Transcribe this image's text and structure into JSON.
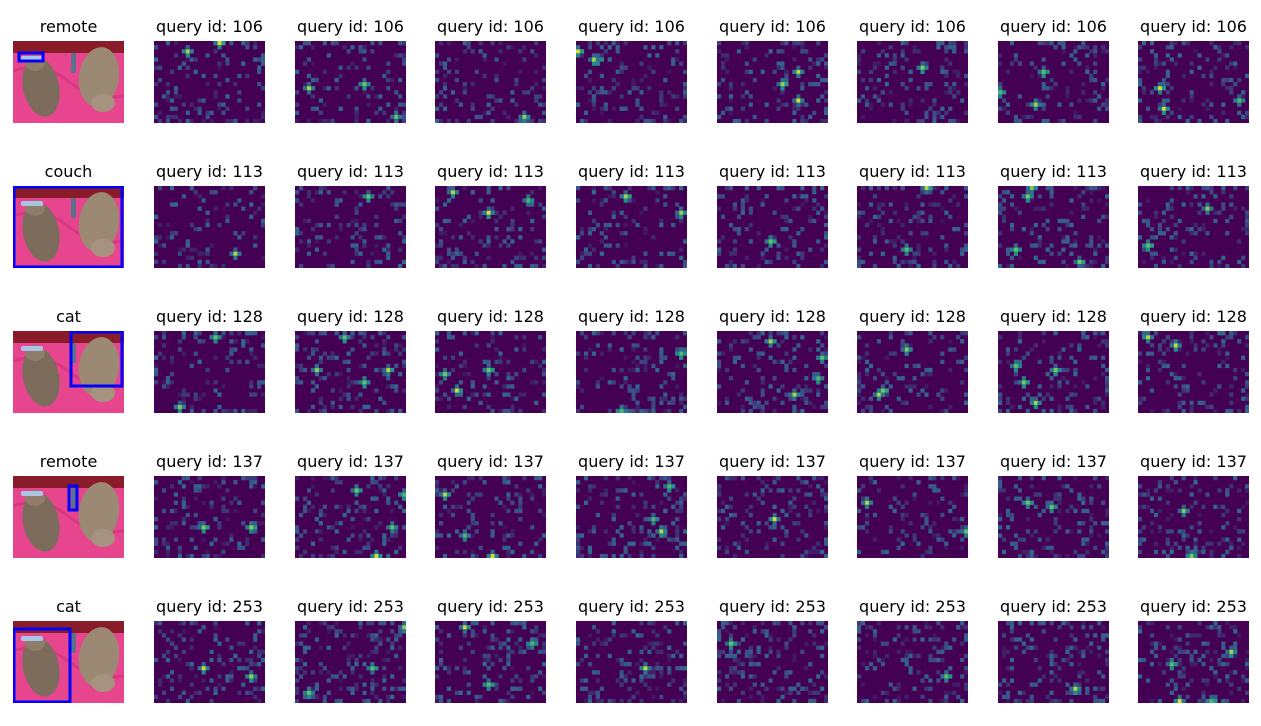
{
  "figure": {
    "palette": {
      "low": "#440154",
      "mid": "#21918c",
      "high": "#fde725",
      "box": "#0000ff",
      "couch": "#e8458f",
      "backdrop": "#8a1c2a"
    },
    "rows": [
      {
        "label": "remote",
        "heatmap_titles": [
          "query id: 106",
          "query id: 106",
          "query id: 106",
          "query id: 106",
          "query id: 106",
          "query id: 106",
          "query id: 106",
          "query id: 106"
        ]
      },
      {
        "label": "couch",
        "heatmap_titles": [
          "query id: 113",
          "query id: 113",
          "query id: 113",
          "query id: 113",
          "query id: 113",
          "query id: 113",
          "query id: 113",
          "query id: 113"
        ]
      },
      {
        "label": "cat",
        "heatmap_titles": [
          "query id: 128",
          "query id: 128",
          "query id: 128",
          "query id: 128",
          "query id: 128",
          "query id: 128",
          "query id: 128",
          "query id: 128"
        ]
      },
      {
        "label": "remote",
        "heatmap_titles": [
          "query id: 137",
          "query id: 137",
          "query id: 137",
          "query id: 137",
          "query id: 137",
          "query id: 137",
          "query id: 137",
          "query id: 137"
        ]
      },
      {
        "label": "cat",
        "heatmap_titles": [
          "query id: 253",
          "query id: 253",
          "query id: 253",
          "query id: 253",
          "query id: 253",
          "query id: 253",
          "query id: 253",
          "query id: 253"
        ]
      }
    ]
  }
}
